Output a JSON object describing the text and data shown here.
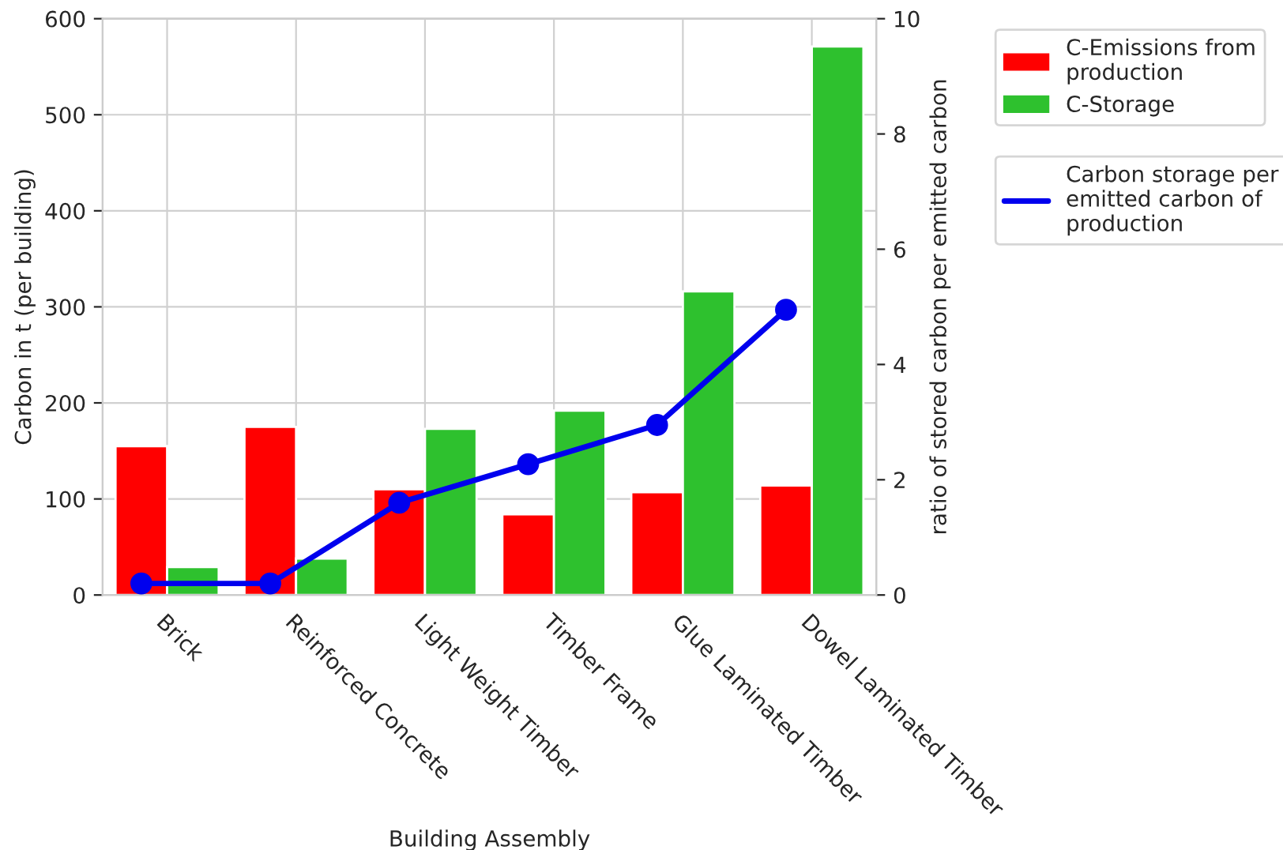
{
  "chart_data": {
    "type": "bar",
    "categories": [
      "Brick",
      "Reinforced Concrete",
      "Light Weight Timber",
      "Timber Frame",
      "Glue Laminated Timber",
      "Dowel Laminated Timber"
    ],
    "xlabel": "Building Assembly",
    "ylabel": "Carbon in t (per building)",
    "y2label": "ratio of stored carbon per emitted carbon",
    "series": [
      {
        "name": "C-Emissions from production",
        "color": "#ff0000",
        "values": [
          155,
          175,
          110,
          84,
          107,
          114
        ]
      },
      {
        "name": "C-Storage",
        "color": "#2ec12e",
        "values": [
          29,
          38,
          173,
          192,
          316,
          571
        ]
      },
      {
        "name": "Carbon storage per emitted carbon of production",
        "type": "line",
        "axis": "y2",
        "color": "#0000ee",
        "marker": "circle",
        "line_style": "solid",
        "values": [
          0.2,
          0.2,
          1.6,
          2.27,
          2.95,
          4.95
        ]
      }
    ],
    "ylim": [
      0,
      600
    ],
    "yticks": [
      0,
      100,
      200,
      300,
      400,
      500,
      600
    ],
    "y2lim": [
      0,
      10
    ],
    "y2ticks": [
      0,
      2,
      4,
      6,
      8,
      10
    ],
    "grid": true,
    "legend": "top right"
  }
}
